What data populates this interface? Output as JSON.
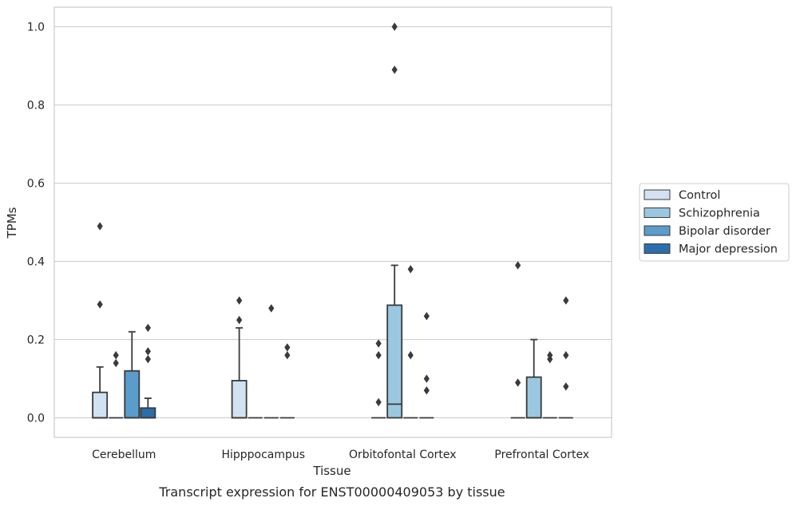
{
  "chart_data": {
    "type": "box",
    "caption": "Transcript expression for ENST00000409053 by tissue",
    "xlabel": "Tissue",
    "ylabel": "TPMs",
    "ylim": [
      -0.05,
      1.05
    ],
    "yticks": [
      0.0,
      0.2,
      0.4,
      0.6,
      0.8,
      1.0
    ],
    "yticklabels": [
      "0.0",
      "0.2",
      "0.4",
      "0.6",
      "0.8",
      "1.0"
    ],
    "grid": "horizontal",
    "legend_position": "right",
    "categories": [
      "Cerebellum",
      "Hipppocampus",
      "Orbitofontal Cortex",
      "Prefrontal Cortex"
    ],
    "series": [
      {
        "name": "Control",
        "color": "#d2e2f2",
        "boxes": [
          {
            "q1": 0.0,
            "median": 0.0,
            "q3": 0.065,
            "whisker_low": 0.0,
            "whisker_high": 0.13,
            "outliers": [
              0.29,
              0.49
            ]
          },
          {
            "q1": 0.0,
            "median": 0.0,
            "q3": 0.095,
            "whisker_low": 0.0,
            "whisker_high": 0.23,
            "outliers": [
              0.25,
              0.3
            ]
          },
          {
            "q1": 0.0,
            "median": 0.0,
            "q3": 0.0,
            "whisker_low": 0.0,
            "whisker_high": 0.0,
            "outliers": [
              0.04,
              0.16,
              0.19
            ]
          },
          {
            "q1": 0.0,
            "median": 0.0,
            "q3": 0.0,
            "whisker_low": 0.0,
            "whisker_high": 0.0,
            "outliers": [
              0.09,
              0.39
            ]
          }
        ]
      },
      {
        "name": "Schizophrenia",
        "color": "#9ac8e0",
        "boxes": [
          {
            "q1": 0.0,
            "median": 0.0,
            "q3": 0.0,
            "whisker_low": 0.0,
            "whisker_high": 0.0,
            "outliers": [
              0.14,
              0.16
            ]
          },
          {
            "q1": 0.0,
            "median": 0.0,
            "q3": 0.0,
            "whisker_low": 0.0,
            "whisker_high": 0.0,
            "outliers": []
          },
          {
            "q1": 0.0,
            "median": 0.035,
            "q3": 0.288,
            "whisker_low": 0.0,
            "whisker_high": 0.39,
            "outliers": [
              0.89,
              1.0
            ]
          },
          {
            "q1": 0.0,
            "median": 0.0,
            "q3": 0.104,
            "whisker_low": 0.0,
            "whisker_high": 0.2,
            "outliers": []
          }
        ]
      },
      {
        "name": "Bipolar disorder",
        "color": "#5a9ccb",
        "boxes": [
          {
            "q1": 0.0,
            "median": 0.0,
            "q3": 0.12,
            "whisker_low": 0.0,
            "whisker_high": 0.22,
            "outliers": []
          },
          {
            "q1": 0.0,
            "median": 0.0,
            "q3": 0.0,
            "whisker_low": 0.0,
            "whisker_high": 0.0,
            "outliers": [
              0.28
            ]
          },
          {
            "q1": 0.0,
            "median": 0.0,
            "q3": 0.0,
            "whisker_low": 0.0,
            "whisker_high": 0.0,
            "outliers": [
              0.16,
              0.38
            ]
          },
          {
            "q1": 0.0,
            "median": 0.0,
            "q3": 0.0,
            "whisker_low": 0.0,
            "whisker_high": 0.0,
            "outliers": [
              0.15,
              0.16
            ]
          }
        ]
      },
      {
        "name": "Major depression",
        "color": "#2c6eab",
        "boxes": [
          {
            "q1": 0.0,
            "median": 0.0,
            "q3": 0.025,
            "whisker_low": 0.0,
            "whisker_high": 0.05,
            "outliers": [
              0.15,
              0.17,
              0.23
            ]
          },
          {
            "q1": 0.0,
            "median": 0.0,
            "q3": 0.0,
            "whisker_low": 0.0,
            "whisker_high": 0.0,
            "outliers": [
              0.16,
              0.18
            ]
          },
          {
            "q1": 0.0,
            "median": 0.0,
            "q3": 0.0,
            "whisker_low": 0.0,
            "whisker_high": 0.0,
            "outliers": [
              0.07,
              0.1,
              0.26
            ]
          },
          {
            "q1": 0.0,
            "median": 0.0,
            "q3": 0.0,
            "whisker_low": 0.0,
            "whisker_high": 0.0,
            "outliers": [
              0.08,
              0.16,
              0.3
            ]
          }
        ]
      }
    ]
  }
}
